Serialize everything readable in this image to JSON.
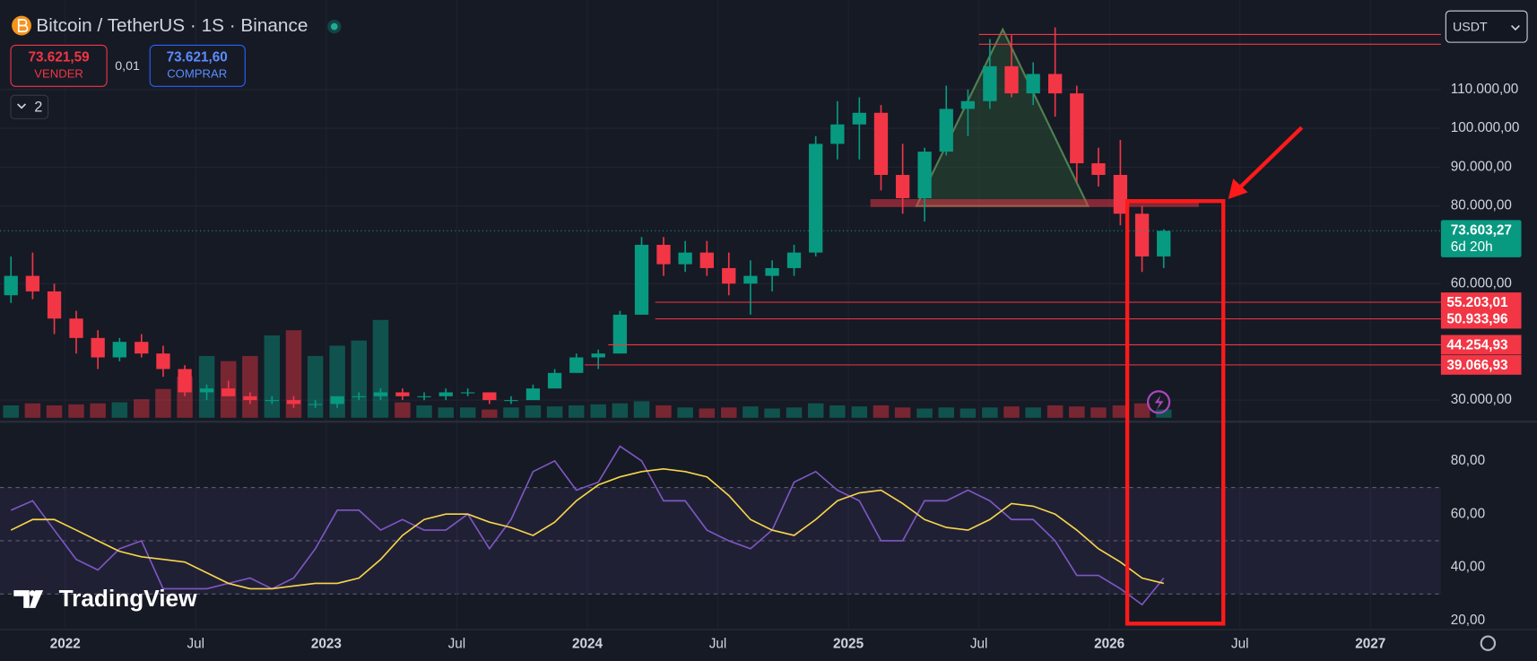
{
  "header": {
    "title": "Bitcoin / TetherUS · 1S · Binance",
    "sell_price": "73.621,59",
    "sell_label": "VENDER",
    "spread": "0,01",
    "buy_price": "73.621,60",
    "buy_label": "COMPRAR",
    "indicators": "2",
    "currency": "USDT",
    "logo": "TradingView"
  },
  "chart_data": [
    {
      "type": "candlestick",
      "x": [
        2021.792,
        2021.875,
        2021.958,
        2022.042,
        2022.125,
        2022.208,
        2022.292,
        2022.375,
        2022.458,
        2022.542,
        2022.625,
        2022.708,
        2022.792,
        2022.875,
        2022.958,
        2023.042,
        2023.125,
        2023.208,
        2023.292,
        2023.375,
        2023.458,
        2023.542,
        2023.625,
        2023.708,
        2023.792,
        2023.875,
        2023.958,
        2024.042,
        2024.125,
        2024.208,
        2024.292,
        2024.375,
        2024.458,
        2024.542,
        2024.625,
        2024.708,
        2024.792,
        2024.875,
        2024.958,
        2025.042,
        2025.125,
        2025.208,
        2025.292,
        2025.375,
        2025.458,
        2025.542,
        2025.625,
        2025.708,
        2025.792,
        2025.875,
        2025.958,
        2026.042,
        2026.125,
        2026.208
      ],
      "open": [
        57000,
        62000,
        58000,
        51000,
        46000,
        41000,
        45000,
        42000,
        38000,
        32000,
        33000,
        31000,
        30000,
        30000,
        29000,
        29000,
        31000,
        31000,
        32000,
        31000,
        31000,
        32000,
        32000,
        30000,
        30000,
        33000,
        37000,
        41000,
        42000,
        52000,
        70000,
        65000,
        68000,
        64000,
        60000,
        62000,
        64000,
        68000,
        96000,
        101000,
        104000,
        88000,
        82000,
        94000,
        105000,
        107000,
        116000,
        109000,
        114000,
        109000,
        91000,
        88000,
        78000,
        67000
      ],
      "high": [
        67000,
        68000,
        60000,
        53000,
        48000,
        46000,
        47000,
        44000,
        39000,
        34000,
        35000,
        32000,
        31000,
        31000,
        30000,
        31000,
        32000,
        33000,
        33000,
        32000,
        33000,
        33000,
        32000,
        31000,
        34000,
        38000,
        42000,
        43000,
        53000,
        72000,
        72000,
        71000,
        71000,
        68000,
        66000,
        66000,
        70000,
        98000,
        107000,
        108000,
        106000,
        96000,
        95000,
        111000,
        110000,
        123000,
        124000,
        117000,
        126000,
        111000,
        95000,
        97000,
        80000,
        74000
      ],
      "low": [
        55000,
        56000,
        47000,
        42000,
        38000,
        40000,
        41000,
        36000,
        31000,
        30000,
        31000,
        29000,
        29000,
        28000,
        28000,
        28000,
        30000,
        30000,
        30000,
        30000,
        30000,
        31000,
        29000,
        29000,
        30000,
        33000,
        37000,
        38000,
        42000,
        52000,
        62000,
        63000,
        62000,
        57000,
        52000,
        58000,
        62000,
        67000,
        92000,
        92000,
        84000,
        78000,
        76000,
        93000,
        98000,
        105000,
        108000,
        106000,
        103000,
        86000,
        85000,
        75000,
        63000,
        64000
      ],
      "close": [
        62000,
        58000,
        51000,
        46000,
        41000,
        45000,
        42000,
        38000,
        32000,
        33000,
        31000,
        30000,
        30000,
        29000,
        29000,
        31000,
        31000,
        32000,
        31000,
        31000,
        32000,
        32000,
        30000,
        30000,
        33000,
        37000,
        41000,
        42000,
        52000,
        70000,
        65000,
        68000,
        64000,
        60000,
        62000,
        64000,
        68000,
        96000,
        101000,
        104000,
        88000,
        82000,
        94000,
        105000,
        107000,
        116000,
        109000,
        114000,
        109000,
        91000,
        88000,
        78000,
        67000,
        73603.27
      ],
      "volume": [
        12,
        14,
        12,
        13,
        14,
        15,
        18,
        28,
        40,
        60,
        55,
        60,
        80,
        85,
        60,
        70,
        75,
        95,
        15,
        12,
        10,
        10,
        8,
        10,
        12,
        11,
        12,
        13,
        14,
        16,
        12,
        10,
        9,
        10,
        11,
        9,
        10,
        14,
        12,
        11,
        12,
        10,
        9,
        10,
        9,
        10,
        11,
        10,
        12,
        11,
        10,
        12,
        14,
        8
      ],
      "up_color": "#089981",
      "down_color": "#f23645",
      "xlim": [
        2021.75,
        2027.27
      ],
      "ylim": [
        25455,
        131760
      ],
      "yticks": [
        {
          "value": 30000,
          "label": "30.000,00"
        },
        {
          "value": 60000,
          "label": "60.000,00"
        },
        {
          "value": 80000,
          "label": "80.000,00"
        },
        {
          "value": 90000,
          "label": "90.000,00"
        },
        {
          "value": 100000,
          "label": "100.000,00"
        },
        {
          "value": 110000,
          "label": "110.000,00"
        }
      ],
      "levels": [
        {
          "value": 55203.01,
          "label": "55.203,01",
          "start": 2024.26
        },
        {
          "value": 50933.96,
          "label": "50.933,96",
          "start": 2024.26
        },
        {
          "value": 44254.93,
          "label": "44.254,93",
          "start": 2024.08
        },
        {
          "value": 39066.93,
          "label": "39.066,93",
          "start": 2023.99
        }
      ],
      "top_levels": [
        {
          "value": 124180,
          "start": 2025.5
        },
        {
          "value": 121660,
          "start": 2025.5
        }
      ],
      "last_price": {
        "value": 73603.27,
        "label": "73.603,27"
      },
      "countdown": "6d 20h",
      "grid": true
    },
    {
      "type": "line",
      "x": [
        2021.792,
        2021.875,
        2021.958,
        2022.042,
        2022.125,
        2022.208,
        2022.292,
        2022.375,
        2022.458,
        2022.542,
        2022.625,
        2022.708,
        2022.792,
        2022.875,
        2022.958,
        2023.042,
        2023.125,
        2023.208,
        2023.292,
        2023.375,
        2023.458,
        2023.542,
        2023.625,
        2023.708,
        2023.792,
        2023.875,
        2023.958,
        2024.042,
        2024.125,
        2024.208,
        2024.292,
        2024.375,
        2024.458,
        2024.542,
        2024.625,
        2024.708,
        2024.792,
        2024.875,
        2024.958,
        2025.042,
        2025.125,
        2025.208,
        2025.292,
        2025.375,
        2025.458,
        2025.542,
        2025.625,
        2025.708,
        2025.792,
        2025.875,
        2025.958,
        2026.042,
        2026.125,
        2026.208
      ],
      "series": [
        {
          "color": "#7e57c2",
          "values": [
            61.5,
            65,
            54,
            43,
            39,
            47,
            50,
            32,
            32,
            32,
            34,
            36,
            32,
            36,
            47,
            61.5,
            61.5,
            54,
            58,
            54,
            54,
            60,
            47,
            58,
            76,
            80,
            69,
            72,
            85.5,
            80,
            65,
            65,
            54,
            50,
            47,
            54,
            72,
            76,
            69,
            65,
            50,
            50,
            65,
            65,
            69,
            65,
            58,
            58,
            50,
            37,
            37,
            32,
            26,
            36
          ]
        },
        {
          "color": "#f7d64a",
          "values": [
            54,
            58,
            58,
            54,
            50,
            46,
            44,
            43,
            42,
            38,
            34,
            32,
            32,
            33,
            34,
            34,
            36,
            43,
            52,
            58,
            60,
            60,
            57,
            55,
            52,
            57,
            65,
            71,
            74,
            76,
            77,
            76,
            74,
            67,
            58,
            54,
            52,
            58,
            65,
            68,
            69,
            64,
            58,
            55,
            54,
            58,
            64,
            63,
            60,
            54,
            47,
            42,
            36,
            34
          ]
        }
      ],
      "xlim": [
        2021.75,
        2027.27
      ],
      "ylim": [
        17.4,
        94
      ],
      "yticks": [
        {
          "value": 20,
          "label": "20,00"
        },
        {
          "value": 40,
          "label": "40,00"
        },
        {
          "value": 60,
          "label": "60,00"
        },
        {
          "value": 80,
          "label": "80,00"
        }
      ],
      "levels": [
        30,
        50,
        70
      ],
      "xticks": [
        2022,
        {
          "value": 2022.5,
          "label": "Jul"
        },
        2023,
        {
          "value": 2023.5,
          "label": "Jul"
        },
        2024,
        {
          "value": 2024.5,
          "label": "Jul"
        },
        2025,
        {
          "value": 2025.5,
          "label": "Jul"
        },
        2026,
        {
          "value": 2026.5,
          "label": "Jul"
        },
        2027
      ]
    }
  ]
}
